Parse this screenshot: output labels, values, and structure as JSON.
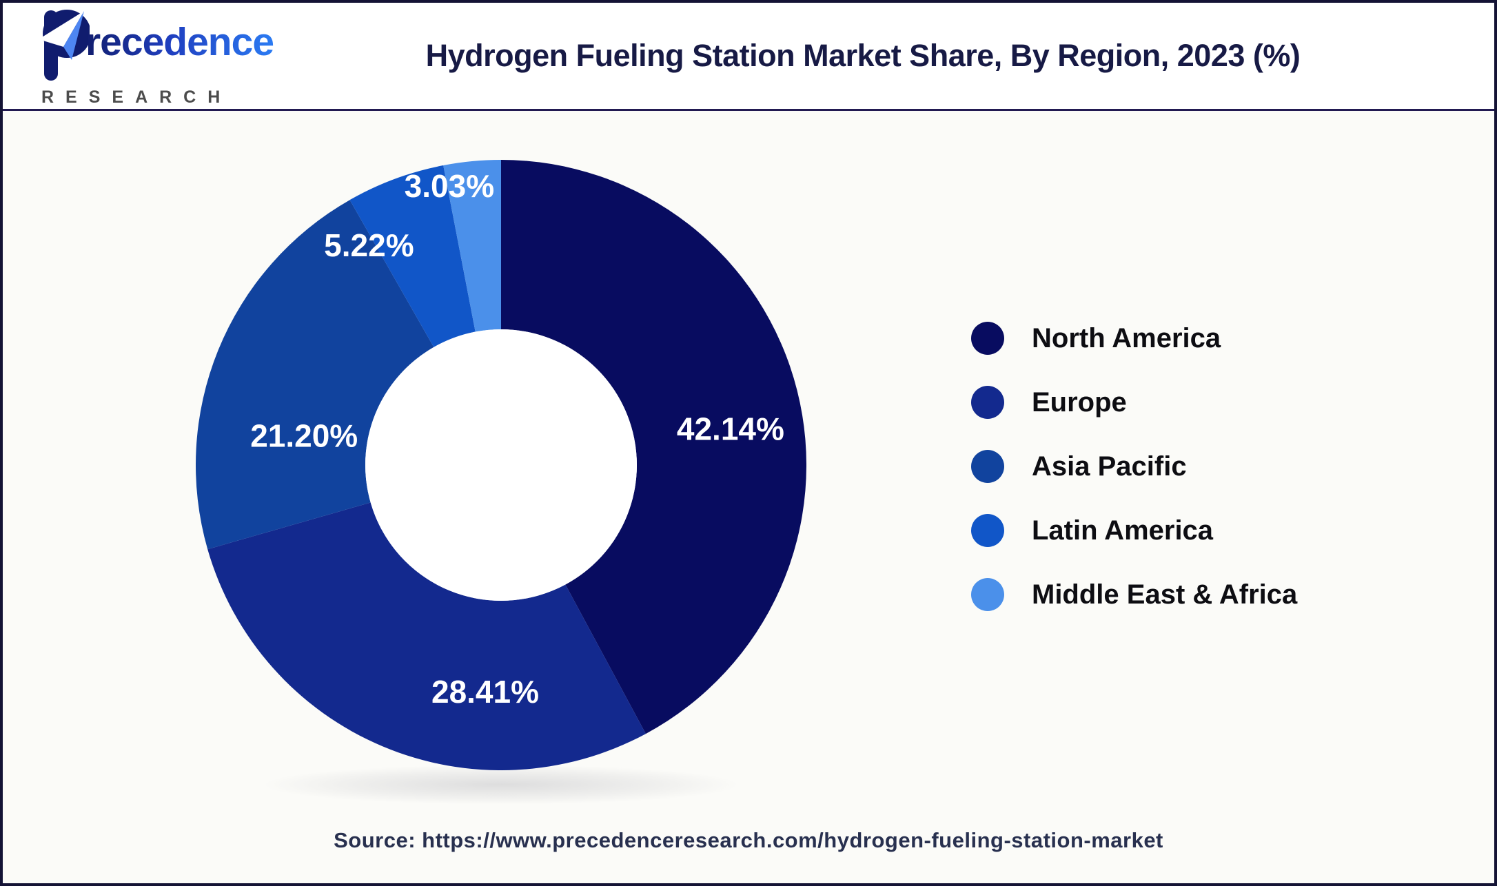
{
  "header": {
    "title": "Hydrogen Fueling Station Market Share, By Region, 2023 (%)",
    "logo": {
      "brand_rest": "recedence",
      "subtitle": "RESEARCH"
    }
  },
  "chart_data": {
    "type": "pie",
    "subtype": "donut",
    "title": "Hydrogen Fueling Station Market Share, By Region, 2023 (%)",
    "unit": "%",
    "categories": [
      "North America",
      "Europe",
      "Asia Pacific",
      "Latin America",
      "Middle East & Africa"
    ],
    "values": [
      42.14,
      28.41,
      21.2,
      5.22,
      3.03
    ],
    "labels": [
      "42.14%",
      "28.41%",
      "21.20%",
      "5.22%",
      "3.03%"
    ],
    "colors": [
      "#080c60",
      "#13298e",
      "#11439e",
      "#1156c8",
      "#4b90ea"
    ],
    "start_angle_deg": 0,
    "direction": "clockwise",
    "legend_position": "right",
    "donut_hole_color": "#ffffff",
    "label_color": "#ffffff"
  },
  "footer": {
    "source": "Source: https://www.precedenceresearch.com/hydrogen-fueling-station-market"
  }
}
